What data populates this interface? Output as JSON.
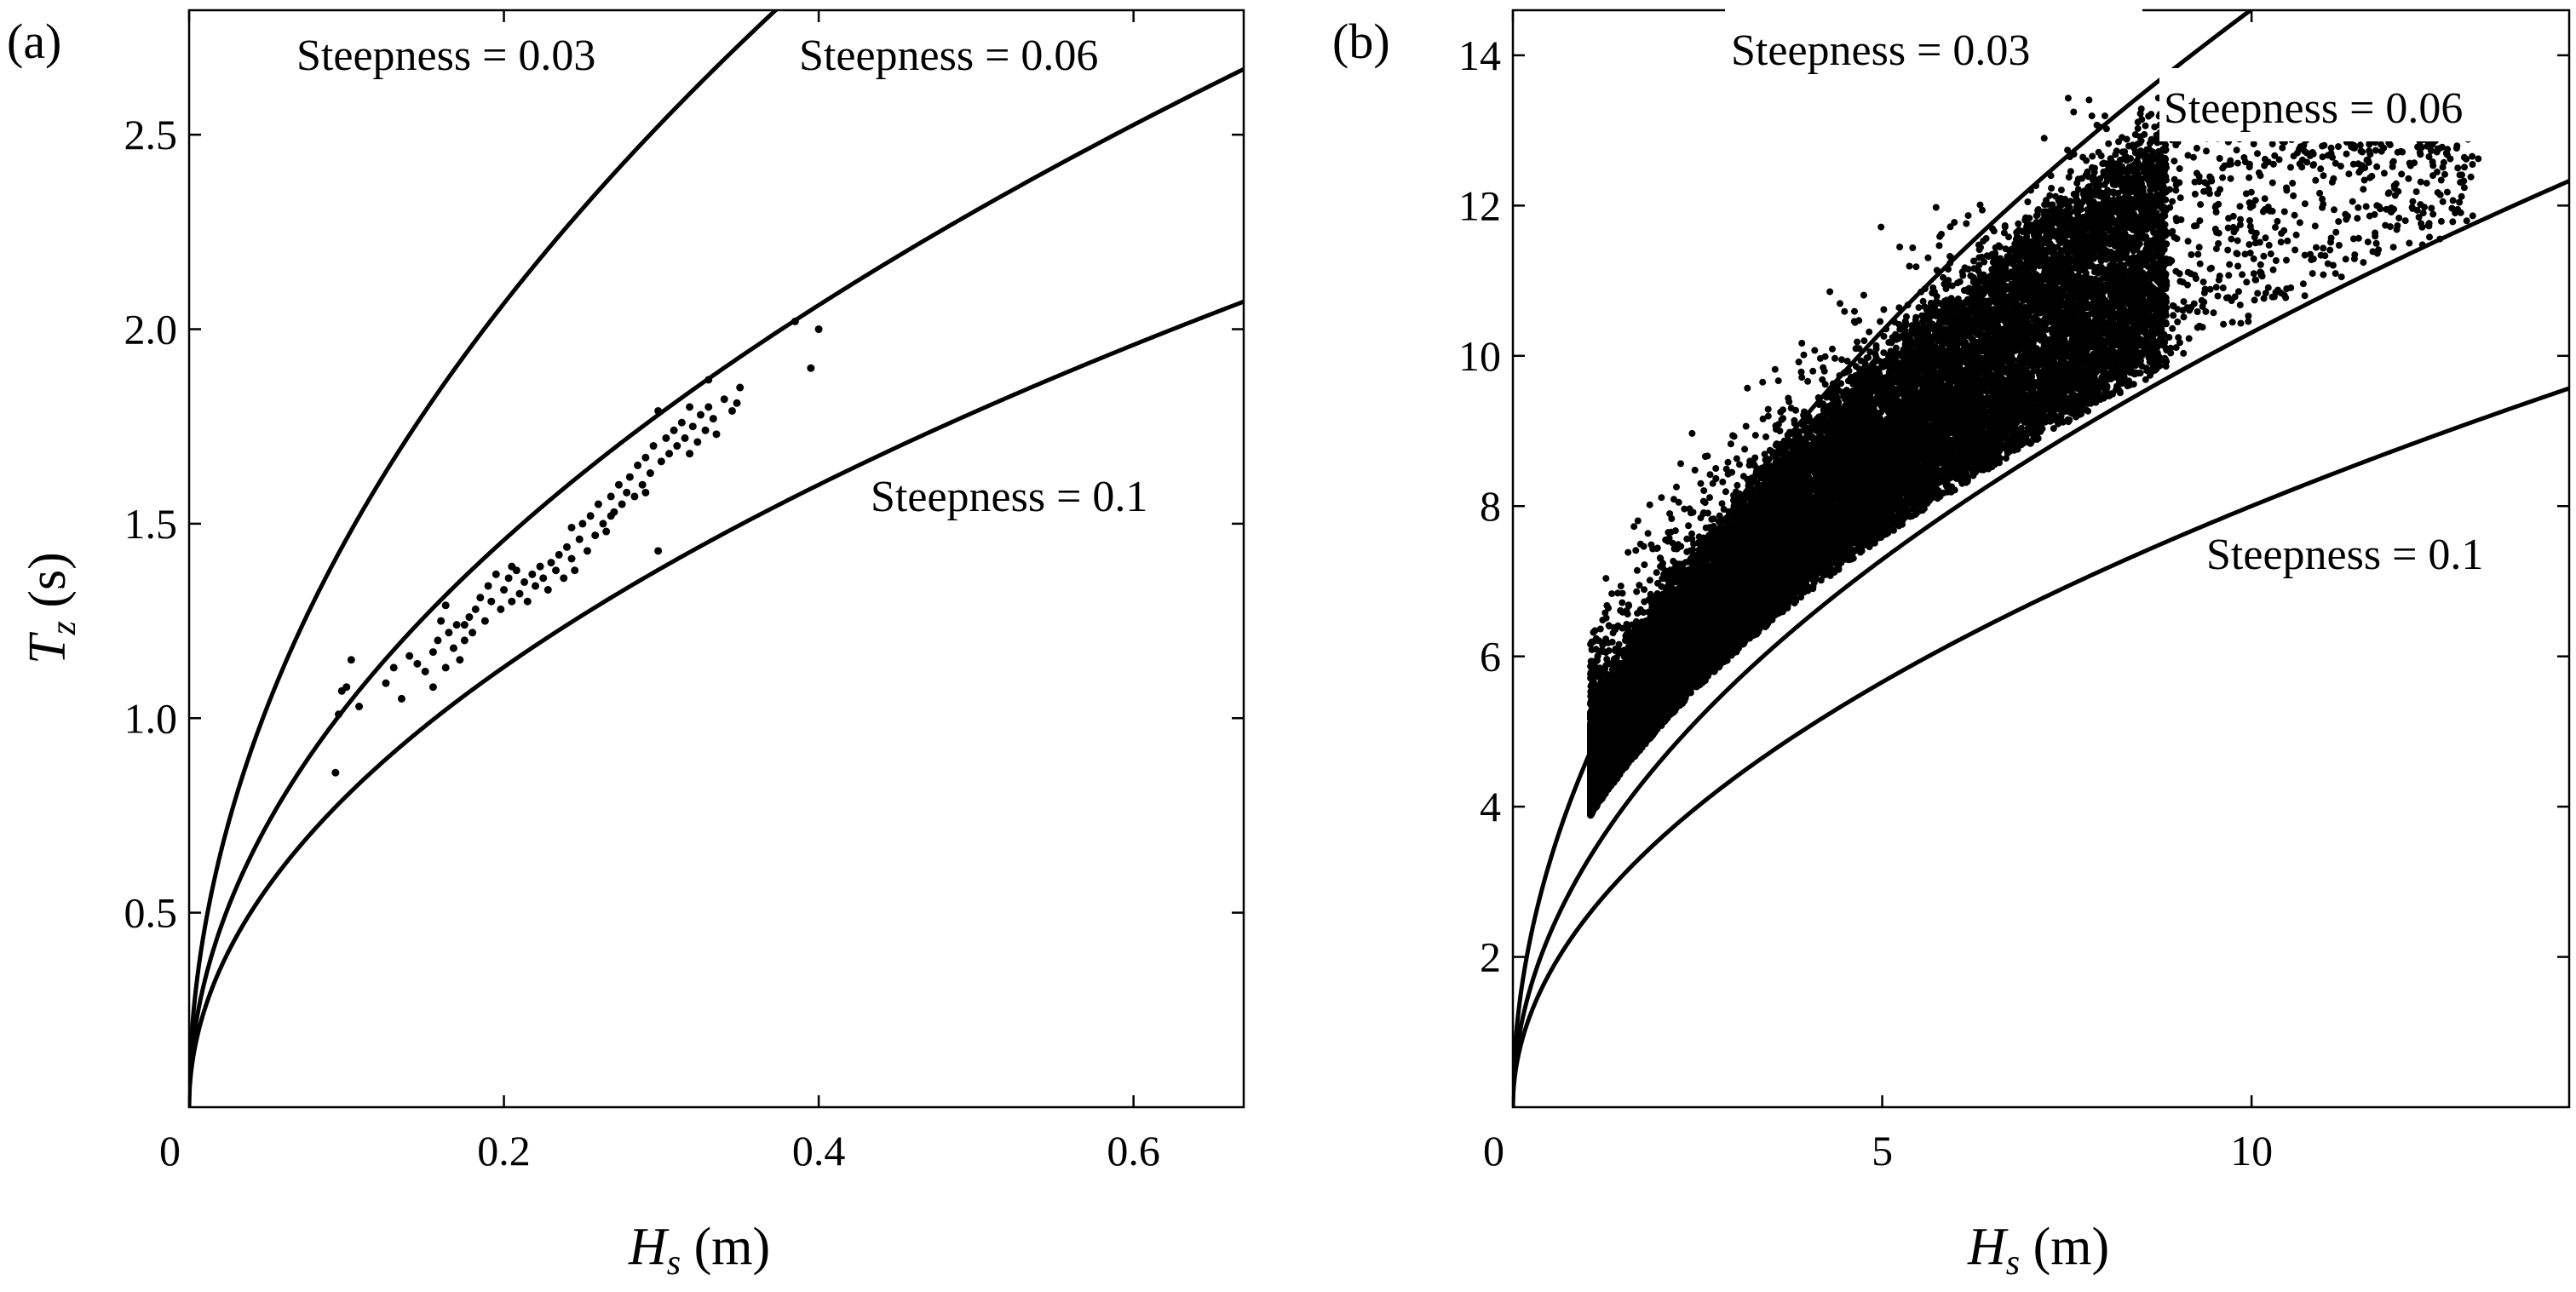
{
  "chart_data": [
    {
      "type": "scatter",
      "panel_label": "(a)",
      "xlabel": "H_s (m)",
      "ylabel": "T_z (s)",
      "xlim": [
        0,
        0.67
      ],
      "ylim": [
        0,
        2.82
      ],
      "xticks": [
        0,
        0.2,
        0.4,
        0.6
      ],
      "xtick_labels": [
        "0",
        "0.2",
        "0.4",
        "0.6"
      ],
      "yticks": [
        0.5,
        1.0,
        1.5,
        2.0,
        2.5
      ],
      "ytick_labels": [
        "0.5",
        "1.0",
        "1.5",
        "2.0",
        "2.5"
      ],
      "curves": [
        {
          "steepness": 0.03,
          "label": "Steepness = 0.03",
          "A": 4.62
        },
        {
          "steepness": 0.06,
          "label": "Steepness = 0.06",
          "A": 3.26
        },
        {
          "steepness": 0.1,
          "label": "Steepness = 0.1",
          "A": 2.53
        }
      ],
      "points": [
        [
          0.093,
          0.86
        ],
        [
          0.095,
          1.01
        ],
        [
          0.097,
          1.07
        ],
        [
          0.1,
          1.08
        ],
        [
          0.103,
          1.15
        ],
        [
          0.108,
          1.03
        ],
        [
          0.125,
          1.09
        ],
        [
          0.13,
          1.13
        ],
        [
          0.135,
          1.05
        ],
        [
          0.14,
          1.16
        ],
        [
          0.145,
          1.14
        ],
        [
          0.15,
          1.12
        ],
        [
          0.155,
          1.08
        ],
        [
          0.158,
          1.2
        ],
        [
          0.16,
          1.25
        ],
        [
          0.163,
          1.29
        ],
        [
          0.165,
          1.22
        ],
        [
          0.168,
          1.18
        ],
        [
          0.17,
          1.24
        ],
        [
          0.172,
          1.15
        ],
        [
          0.175,
          1.2
        ],
        [
          0.178,
          1.26
        ],
        [
          0.18,
          1.22
        ],
        [
          0.182,
          1.28
        ],
        [
          0.185,
          1.31
        ],
        [
          0.188,
          1.25
        ],
        [
          0.19,
          1.34
        ],
        [
          0.192,
          1.3
        ],
        [
          0.195,
          1.37
        ],
        [
          0.198,
          1.28
        ],
        [
          0.2,
          1.33
        ],
        [
          0.203,
          1.36
        ],
        [
          0.205,
          1.3
        ],
        [
          0.208,
          1.38
        ],
        [
          0.21,
          1.32
        ],
        [
          0.213,
          1.35
        ],
        [
          0.215,
          1.3
        ],
        [
          0.218,
          1.37
        ],
        [
          0.22,
          1.34
        ],
        [
          0.223,
          1.39
        ],
        [
          0.225,
          1.36
        ],
        [
          0.228,
          1.33
        ],
        [
          0.23,
          1.4
        ],
        [
          0.233,
          1.38
        ],
        [
          0.235,
          1.42
        ],
        [
          0.238,
          1.36
        ],
        [
          0.24,
          1.44
        ],
        [
          0.243,
          1.41
        ],
        [
          0.245,
          1.38
        ],
        [
          0.248,
          1.46
        ],
        [
          0.25,
          1.5
        ],
        [
          0.253,
          1.43
        ],
        [
          0.255,
          1.52
        ],
        [
          0.258,
          1.47
        ],
        [
          0.26,
          1.55
        ],
        [
          0.263,
          1.5
        ],
        [
          0.265,
          1.48
        ],
        [
          0.268,
          1.57
        ],
        [
          0.27,
          1.53
        ],
        [
          0.273,
          1.6
        ],
        [
          0.275,
          1.55
        ],
        [
          0.278,
          1.58
        ],
        [
          0.28,
          1.62
        ],
        [
          0.283,
          1.57
        ],
        [
          0.285,
          1.65
        ],
        [
          0.288,
          1.6
        ],
        [
          0.29,
          1.67
        ],
        [
          0.293,
          1.63
        ],
        [
          0.295,
          1.7
        ],
        [
          0.298,
          1.43
        ],
        [
          0.3,
          1.66
        ],
        [
          0.303,
          1.72
        ],
        [
          0.305,
          1.68
        ],
        [
          0.308,
          1.74
        ],
        [
          0.31,
          1.7
        ],
        [
          0.313,
          1.76
        ],
        [
          0.315,
          1.72
        ],
        [
          0.318,
          1.68
        ],
        [
          0.32,
          1.75
        ],
        [
          0.323,
          1.71
        ],
        [
          0.325,
          1.78
        ],
        [
          0.328,
          1.74
        ],
        [
          0.33,
          1.8
        ],
        [
          0.333,
          1.77
        ],
        [
          0.335,
          1.73
        ],
        [
          0.34,
          1.82
        ],
        [
          0.345,
          1.79
        ],
        [
          0.35,
          1.85
        ],
        [
          0.298,
          1.79
        ],
        [
          0.33,
          1.87
        ],
        [
          0.385,
          2.02
        ],
        [
          0.395,
          1.9
        ],
        [
          0.4,
          2.0
        ],
        [
          0.205,
          1.39
        ],
        [
          0.243,
          1.49
        ],
        [
          0.268,
          1.52
        ],
        [
          0.29,
          1.58
        ],
        [
          0.318,
          1.8
        ],
        [
          0.348,
          1.81
        ],
        [
          0.175,
          1.24
        ],
        [
          0.155,
          1.17
        ],
        [
          0.163,
          1.13
        ]
      ]
    },
    {
      "type": "scatter",
      "panel_label": "(b)",
      "xlabel": "H_s (m)",
      "ylabel": "",
      "xlim": [
        0,
        14.3
      ],
      "ylim": [
        0,
        14.6
      ],
      "xticks": [
        0,
        5,
        10
      ],
      "xtick_labels": [
        "0",
        "5",
        "10"
      ],
      "yticks": [
        2,
        4,
        6,
        8,
        10,
        12,
        14
      ],
      "ytick_labels": [
        "2",
        "4",
        "6",
        "8",
        "10",
        "12",
        "14"
      ],
      "curves": [
        {
          "steepness": 0.03,
          "label": "Steepness = 0.03",
          "A": 4.62
        },
        {
          "steepness": 0.06,
          "label": "Steepness = 0.06",
          "A": 3.26
        },
        {
          "steepness": 0.1,
          "label": "Steepness = 0.1",
          "A": 2.53
        }
      ],
      "scatter_cloud": {
        "n_points": 26000,
        "hs_range": [
          1.0,
          13.2
        ],
        "tz_range": [
          4.2,
          13.5
        ]
      }
    }
  ]
}
